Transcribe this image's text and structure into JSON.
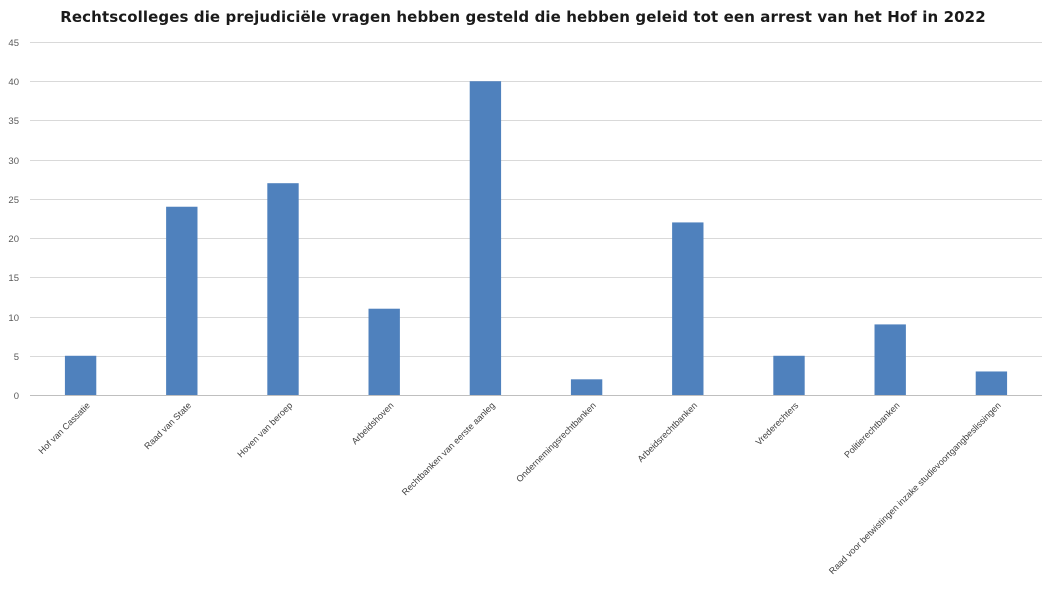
{
  "chart_data": {
    "type": "bar",
    "title": "Rechtscolleges die prejudiciële vragen hebben gesteld die hebben geleid tot een arrest van het Hof in 2022",
    "xlabel": "",
    "ylabel": "",
    "categories": [
      "Hof van Cassatie",
      "Raad van State",
      "Hoven van beroep",
      "Arbeidshoven",
      "Rechtbanken van eerste aanleg",
      "Ondernemingsrechtbanken",
      "Arbeidsrechtbanken",
      "Vrederechters",
      "Politierechtbanken",
      "Raad voor betwistingen inzake studievoortgangbeslissingen"
    ],
    "values": [
      5,
      24,
      27,
      11,
      40,
      2,
      22,
      5,
      9,
      3
    ],
    "ylim": [
      0,
      45
    ],
    "yticks": [
      0,
      5,
      10,
      15,
      20,
      25,
      30,
      35,
      40,
      45
    ],
    "grid": true,
    "legend": "none",
    "colors": {
      "bar": "#4f81bd",
      "grid": "#d9d9d9"
    }
  }
}
